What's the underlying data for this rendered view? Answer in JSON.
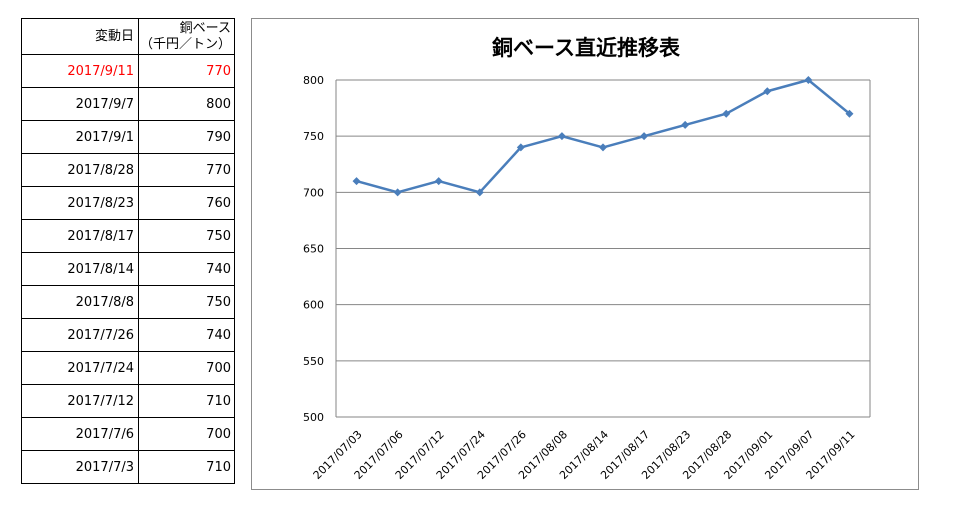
{
  "table": {
    "header_date": "変動日",
    "header_value_line1": "銅ベース",
    "header_value_line2": "（千円／トン）",
    "highlight_color": "#ff0000",
    "rows": [
      {
        "date": "2017/9/11",
        "value": "770",
        "highlight": true
      },
      {
        "date": "2017/9/7",
        "value": "800"
      },
      {
        "date": "2017/9/1",
        "value": "790"
      },
      {
        "date": "2017/8/28",
        "value": "770"
      },
      {
        "date": "2017/8/23",
        "value": "760"
      },
      {
        "date": "2017/8/17",
        "value": "750"
      },
      {
        "date": "2017/8/14",
        "value": "740"
      },
      {
        "date": "2017/8/8",
        "value": "750"
      },
      {
        "date": "2017/7/26",
        "value": "740"
      },
      {
        "date": "2017/7/24",
        "value": "700"
      },
      {
        "date": "2017/7/12",
        "value": "710"
      },
      {
        "date": "2017/7/6",
        "value": "700"
      },
      {
        "date": "2017/7/3",
        "value": "710"
      }
    ]
  },
  "chart_data": {
    "type": "line",
    "title": "銅ベース直近推移表",
    "categories": [
      "2017/07/03",
      "2017/07/06",
      "2017/07/12",
      "2017/07/24",
      "2017/07/26",
      "2017/08/08",
      "2017/08/14",
      "2017/08/17",
      "2017/08/23",
      "2017/08/28",
      "2017/09/01",
      "2017/09/07",
      "2017/09/11"
    ],
    "series": [
      {
        "values": [
          710,
          700,
          710,
          700,
          740,
          750,
          740,
          750,
          760,
          770,
          790,
          800,
          770
        ],
        "color": "#4a7ebb"
      }
    ],
    "ylim": [
      500,
      800
    ],
    "yticks": [
      500,
      550,
      600,
      650,
      700,
      750,
      800
    ],
    "grid": true,
    "marker": "diamond",
    "legend": "none"
  }
}
